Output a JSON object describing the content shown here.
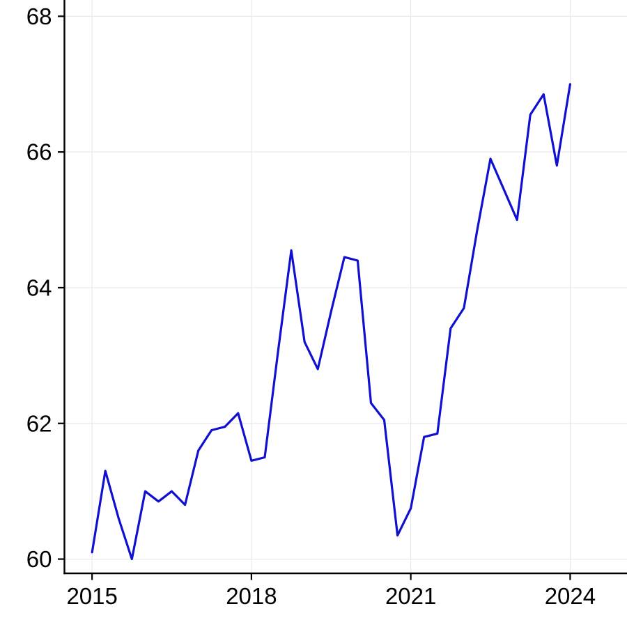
{
  "chart_data": {
    "type": "line",
    "title": "",
    "xlabel": "",
    "ylabel": "",
    "series": [
      {
        "name": "series-1",
        "color": "#1010d0",
        "x": [
          2015.0,
          2015.25,
          2015.5,
          2015.75,
          2016.0,
          2016.25,
          2016.5,
          2016.75,
          2017.0,
          2017.25,
          2017.5,
          2017.75,
          2018.0,
          2018.25,
          2018.5,
          2018.75,
          2019.0,
          2019.25,
          2019.5,
          2019.75,
          2020.0,
          2020.25,
          2020.5,
          2020.75,
          2021.0,
          2021.25,
          2021.5,
          2021.75,
          2022.0,
          2022.25,
          2022.5,
          2022.75,
          2023.0,
          2023.25,
          2023.5,
          2023.75,
          2024.0
        ],
        "values": [
          60.1,
          61.3,
          60.6,
          60.0,
          61.0,
          60.85,
          61.0,
          60.8,
          61.6,
          61.9,
          61.95,
          62.15,
          61.45,
          61.5,
          63.05,
          64.55,
          63.2,
          62.8,
          63.65,
          64.45,
          64.4,
          62.3,
          62.05,
          60.35,
          60.75,
          61.8,
          61.85,
          63.4,
          63.7,
          64.85,
          65.9,
          65.45,
          65.0,
          66.55,
          66.85,
          65.8,
          67.0
        ]
      }
    ],
    "x_ticks": [
      2015,
      2018,
      2021,
      2024
    ],
    "y_ticks": [
      60,
      62,
      64,
      66,
      68
    ],
    "xlim": [
      2014.48,
      2025.07
    ],
    "ylim": [
      59.79,
      68.24
    ],
    "grid": true,
    "legend": false,
    "grid_color": "#e9e9e9",
    "axis_color": "#000000",
    "tick_label_color": "#000000"
  }
}
